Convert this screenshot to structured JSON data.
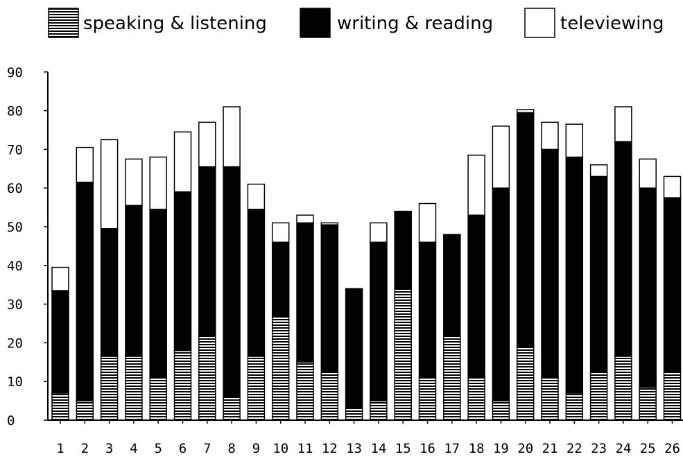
{
  "chart_data": {
    "type": "bar",
    "stacked": true,
    "title": "",
    "xlabel": "",
    "ylabel": "",
    "ylim": [
      0,
      90
    ],
    "yticks": [
      0,
      10,
      20,
      30,
      40,
      50,
      60,
      70,
      80,
      90
    ],
    "grid": false,
    "legend_position": "top",
    "categories": [
      "1",
      "2",
      "3",
      "4",
      "5",
      "6",
      "7",
      "8",
      "9",
      "10",
      "11",
      "12",
      "13",
      "14",
      "15",
      "16",
      "17",
      "18",
      "19",
      "20",
      "21",
      "22",
      "23",
      "24",
      "25",
      "26"
    ],
    "series": [
      {
        "name": "speaking & listening",
        "fill": "horizontal-stripes",
        "color": "#000000",
        "values": [
          7,
          5,
          16.5,
          16.5,
          11,
          18,
          22,
          6,
          16.5,
          27,
          15,
          12.5,
          3,
          5,
          34,
          11,
          22,
          11,
          5,
          19,
          11,
          7,
          12.5,
          16.5,
          8.5,
          12.5
        ]
      },
      {
        "name": "writing & reading",
        "fill": "solid",
        "color": "#000000",
        "values": [
          26.5,
          56.5,
          33,
          39,
          43.5,
          41,
          43.5,
          59.5,
          38,
          19,
          36,
          38,
          31,
          41,
          20,
          35,
          26,
          42,
          55,
          60.5,
          59,
          61,
          50.5,
          55.5,
          51.5,
          45
        ]
      },
      {
        "name": "televiewing",
        "fill": "white",
        "color": "#ffffff",
        "values": [
          6,
          9,
          23,
          12,
          13.5,
          15.5,
          11.5,
          15.5,
          6.5,
          5,
          2,
          0.5,
          0,
          5,
          0,
          10,
          0,
          15.5,
          16,
          0.8,
          7,
          8.5,
          3,
          9,
          7.5,
          5.5
        ]
      }
    ]
  }
}
